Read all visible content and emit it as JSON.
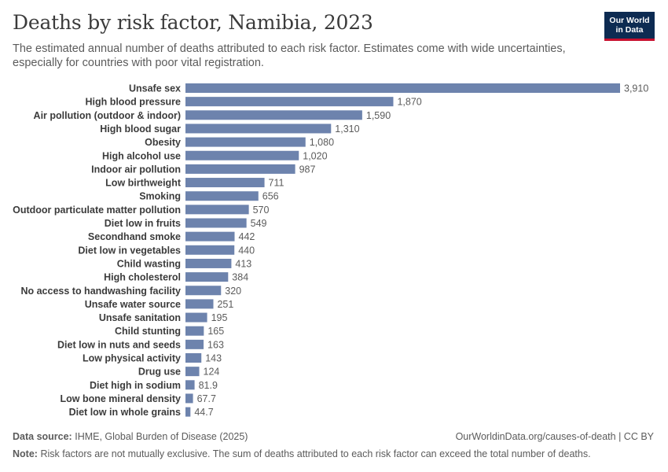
{
  "header": {
    "title": "Deaths by risk factor, Namibia, 2023",
    "subtitle": "The estimated annual number of deaths attributed to each risk factor. Estimates come with wide uncertainties, especially for countries with poor vital registration.",
    "logo_text": "Our World in Data"
  },
  "footer": {
    "source_label": "Data source:",
    "source_text": "IHME, Global Burden of Disease (2025)",
    "url_text": "OurWorldinData.org/causes-of-death | CC BY",
    "note_label": "Note:",
    "note_text": "Risk factors are not mutually exclusive. The sum of deaths attributed to each risk factor can exceed the total number of deaths."
  },
  "colors": {
    "bar": "#6d83ad",
    "label": "#3b3b3b",
    "value": "#5b5b5b"
  },
  "chart_data": {
    "type": "bar",
    "orientation": "horizontal",
    "categories": [
      "Unsafe sex",
      "High blood pressure",
      "Air pollution (outdoor & indoor)",
      "High blood sugar",
      "Obesity",
      "High alcohol use",
      "Indoor air pollution",
      "Low birthweight",
      "Smoking",
      "Outdoor particulate matter pollution",
      "Diet low in fruits",
      "Secondhand smoke",
      "Diet low in vegetables",
      "Child wasting",
      "High cholesterol",
      "No access to handwashing facility",
      "Unsafe water source",
      "Unsafe sanitation",
      "Child stunting",
      "Diet low in nuts and seeds",
      "Low physical activity",
      "Drug use",
      "Diet high in sodium",
      "Low bone mineral density",
      "Diet low in whole grains"
    ],
    "values": [
      3910,
      1870,
      1590,
      1310,
      1080,
      1020,
      987,
      711,
      656,
      570,
      549,
      442,
      440,
      413,
      384,
      320,
      251,
      195,
      165,
      163,
      143,
      124,
      81.9,
      67.7,
      44.7
    ],
    "value_labels": [
      "3,910",
      "1,870",
      "1,590",
      "1,310",
      "1,080",
      "1,020",
      "987",
      "711",
      "656",
      "570",
      "549",
      "442",
      "440",
      "413",
      "384",
      "320",
      "251",
      "195",
      "165",
      "163",
      "143",
      "124",
      "81.9",
      "67.7",
      "44.7"
    ],
    "title": "Deaths by risk factor, Namibia, 2023",
    "xlim": [
      0,
      3910
    ],
    "grid": false,
    "legend": "none"
  }
}
